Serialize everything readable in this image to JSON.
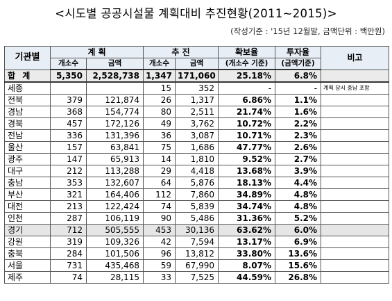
{
  "title": "<시도별 공공시설물 계획대비 추진현황(2011~2015)>",
  "subtitle": "(작성기준 : '15년 12월말, 금액단위 : 백만원)",
  "headers": {
    "region": "기관별",
    "plan": "계 획",
    "progress": "추 진",
    "secure_rate": "확보율",
    "secure_note": "(개소수 기준)",
    "invest_rate": "투자율",
    "invest_note": "(금액기준)",
    "remark": "비고",
    "count": "개소수",
    "amount": "금액"
  },
  "total": {
    "region": "합 계",
    "plan_count": "5,350",
    "plan_amount": "2,528,738",
    "prog_count": "1,347",
    "prog_amount": "171,060",
    "secure": "25.18%",
    "invest": "6.8%",
    "remark": ""
  },
  "rows": [
    {
      "region": "세종",
      "plan_count": "",
      "plan_amount": "",
      "prog_count": "15",
      "prog_amount": "352",
      "secure": "-",
      "invest": "-",
      "remark": "계획 당시 충남 포함"
    },
    {
      "region": "전북",
      "plan_count": "379",
      "plan_amount": "121,874",
      "prog_count": "26",
      "prog_amount": "1,317",
      "secure": "6.86%",
      "invest": "1.1%",
      "remark": ""
    },
    {
      "region": "경남",
      "plan_count": "368",
      "plan_amount": "154,774",
      "prog_count": "80",
      "prog_amount": "2,511",
      "secure": "21.74%",
      "invest": "1.6%",
      "remark": ""
    },
    {
      "region": "경북",
      "plan_count": "457",
      "plan_amount": "172,126",
      "prog_count": "49",
      "prog_amount": "3,762",
      "secure": "10.72%",
      "invest": "2.2%",
      "remark": ""
    },
    {
      "region": "전남",
      "plan_count": "336",
      "plan_amount": "131,396",
      "prog_count": "36",
      "prog_amount": "3,087",
      "secure": "10.71%",
      "invest": "2.3%",
      "remark": ""
    },
    {
      "region": "울산",
      "plan_count": "157",
      "plan_amount": "63,841",
      "prog_count": "75",
      "prog_amount": "1,686",
      "secure": "47.77%",
      "invest": "2.6%",
      "remark": ""
    },
    {
      "region": "광주",
      "plan_count": "147",
      "plan_amount": "65,913",
      "prog_count": "14",
      "prog_amount": "1,810",
      "secure": "9.52%",
      "invest": "2.7%",
      "remark": ""
    },
    {
      "region": "대구",
      "plan_count": "212",
      "plan_amount": "113,288",
      "prog_count": "29",
      "prog_amount": "4,418",
      "secure": "13.68%",
      "invest": "3.9%",
      "remark": ""
    },
    {
      "region": "충남",
      "plan_count": "353",
      "plan_amount": "132,607",
      "prog_count": "64",
      "prog_amount": "5,876",
      "secure": "18.13%",
      "invest": "4.4%",
      "remark": ""
    },
    {
      "region": "부산",
      "plan_count": "321",
      "plan_amount": "164,406",
      "prog_count": "112",
      "prog_amount": "7,860",
      "secure": "34.89%",
      "invest": "4.8%",
      "remark": ""
    },
    {
      "region": "대전",
      "plan_count": "213",
      "plan_amount": "122,424",
      "prog_count": "74",
      "prog_amount": "5,839",
      "secure": "34.74%",
      "invest": "4.8%",
      "remark": ""
    },
    {
      "region": "인천",
      "plan_count": "287",
      "plan_amount": "106,119",
      "prog_count": "90",
      "prog_amount": "5,486",
      "secure": "31.36%",
      "invest": "5.2%",
      "remark": ""
    },
    {
      "region": "경기",
      "plan_count": "712",
      "plan_amount": "505,555",
      "prog_count": "453",
      "prog_amount": "30,136",
      "secure": "63.62%",
      "invest": "6.0%",
      "remark": "",
      "highlight": true
    },
    {
      "region": "강원",
      "plan_count": "319",
      "plan_amount": "109,326",
      "prog_count": "42",
      "prog_amount": "7,594",
      "secure": "13.17%",
      "invest": "6.9%",
      "remark": ""
    },
    {
      "region": "충북",
      "plan_count": "284",
      "plan_amount": "101,506",
      "prog_count": "96",
      "prog_amount": "13,812",
      "secure": "33.80%",
      "invest": "13.6%",
      "remark": ""
    },
    {
      "region": "서울",
      "plan_count": "731",
      "plan_amount": "435,468",
      "prog_count": "59",
      "prog_amount": "67,990",
      "secure": "8.07%",
      "invest": "15.6%",
      "remark": ""
    },
    {
      "region": "제주",
      "plan_count": "74",
      "plan_amount": "28,115",
      "prog_count": "33",
      "prog_amount": "7,525",
      "secure": "44.59%",
      "invest": "26.8%",
      "remark": ""
    }
  ]
}
